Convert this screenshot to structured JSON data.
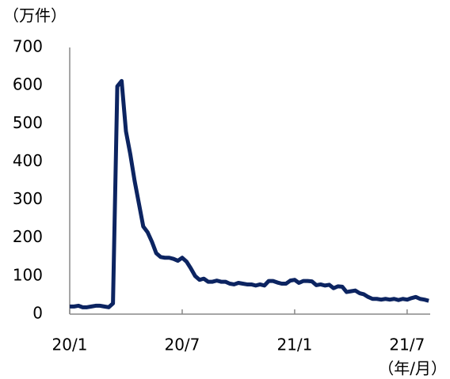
{
  "chart_data": {
    "type": "line",
    "y_unit_label": "（万件）",
    "x_unit_label": "（年/月）",
    "categories": [
      "20/1",
      null,
      null,
      null,
      null,
      null,
      null,
      null,
      null,
      null,
      null,
      null,
      null,
      null,
      null,
      null,
      null,
      null,
      null,
      null,
      null,
      null,
      null,
      null,
      null,
      null,
      "20/7",
      null,
      null,
      null,
      null,
      null,
      null,
      null,
      null,
      null,
      null,
      null,
      null,
      null,
      null,
      null,
      null,
      null,
      null,
      null,
      null,
      null,
      null,
      null,
      null,
      null,
      "21/1",
      null,
      null,
      null,
      null,
      null,
      null,
      null,
      null,
      null,
      null,
      null,
      null,
      null,
      null,
      null,
      null,
      null,
      null,
      null,
      null,
      null,
      null,
      null,
      null,
      null,
      "21/7",
      null,
      null,
      null,
      null,
      null
    ],
    "series": [
      {
        "color": "#0c2461",
        "values": [
          20,
          20,
          22,
          18,
          18,
          20,
          22,
          22,
          20,
          18,
          28,
          598,
          612,
          480,
          420,
          350,
          290,
          230,
          215,
          190,
          160,
          150,
          148,
          148,
          145,
          140,
          148,
          138,
          120,
          100,
          90,
          93,
          85,
          85,
          88,
          85,
          85,
          80,
          78,
          82,
          80,
          78,
          78,
          75,
          78,
          75,
          87,
          87,
          83,
          80,
          80,
          88,
          90,
          82,
          87,
          87,
          86,
          76,
          78,
          75,
          77,
          68,
          73,
          72,
          58,
          60,
          62,
          55,
          52,
          45,
          40,
          40,
          38,
          40,
          38,
          40,
          37,
          40,
          38,
          42,
          45,
          40,
          38,
          35
        ]
      }
    ],
    "ylim": [
      0,
      700
    ],
    "yticks": [
      0,
      100,
      200,
      300,
      400,
      500,
      600,
      700
    ],
    "grid": false
  }
}
